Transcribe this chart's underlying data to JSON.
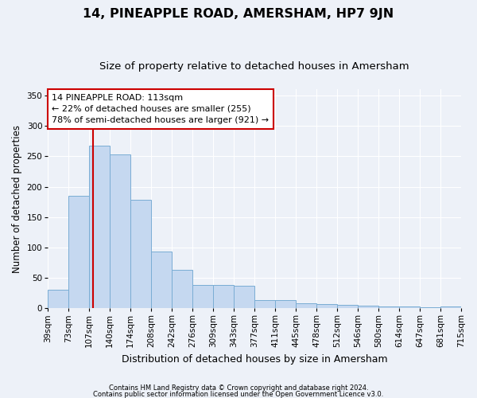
{
  "title": "14, PINEAPPLE ROAD, AMERSHAM, HP7 9JN",
  "subtitle": "Size of property relative to detached houses in Amersham",
  "xlabel": "Distribution of detached houses by size in Amersham",
  "ylabel": "Number of detached properties",
  "bar_values": [
    30,
    185,
    267,
    253,
    178,
    93,
    63,
    38,
    38,
    37,
    13,
    13,
    8,
    7,
    5,
    4,
    3,
    3,
    2,
    3
  ],
  "bin_labels": [
    "39sqm",
    "73sqm",
    "107sqm",
    "140sqm",
    "174sqm",
    "208sqm",
    "242sqm",
    "276sqm",
    "309sqm",
    "343sqm",
    "377sqm",
    "411sqm",
    "445sqm",
    "478sqm",
    "512sqm",
    "546sqm",
    "580sqm",
    "614sqm",
    "647sqm",
    "681sqm",
    "715sqm"
  ],
  "bar_color": "#c5d8f0",
  "bar_edge_color": "#7aadd4",
  "background_color": "#edf1f8",
  "grid_color": "#ffffff",
  "vline_color": "#cc0000",
  "annotation_text": "14 PINEAPPLE ROAD: 113sqm\n← 22% of detached houses are smaller (255)\n78% of semi-detached houses are larger (921) →",
  "annotation_box_color": "#cc0000",
  "ylim": [
    0,
    360
  ],
  "yticks": [
    0,
    50,
    100,
    150,
    200,
    250,
    300,
    350
  ],
  "footnote1": "Contains HM Land Registry data © Crown copyright and database right 2024.",
  "footnote2": "Contains public sector information licensed under the Open Government Licence v3.0.",
  "title_fontsize": 11.5,
  "subtitle_fontsize": 9.5,
  "xlabel_fontsize": 9,
  "ylabel_fontsize": 8.5,
  "tick_fontsize": 7.5,
  "annot_fontsize": 8,
  "footnote_fontsize": 6
}
